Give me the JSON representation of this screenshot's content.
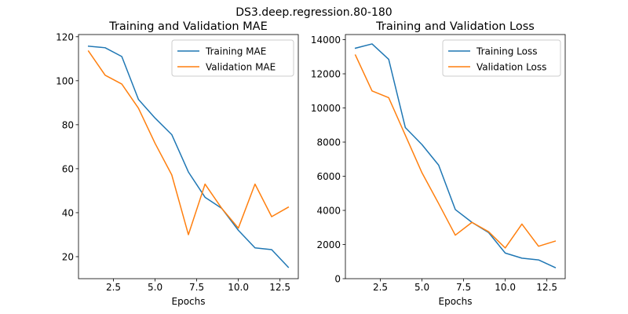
{
  "suptitle": "DS3.deep.regression.80-180",
  "chart_data": [
    {
      "type": "line",
      "title": "Training and Validation MAE",
      "xlabel": "Epochs",
      "ylabel": "",
      "xlim": [
        0.4,
        13.6
      ],
      "ylim": [
        10.0,
        121.0
      ],
      "xticks": [
        2.5,
        5.0,
        7.5,
        10.0,
        12.5
      ],
      "xtick_labels": [
        "2.5",
        "5.0",
        "7.5",
        "10.0",
        "12.5"
      ],
      "yticks": [
        20,
        40,
        60,
        80,
        100,
        120
      ],
      "ytick_labels": [
        "20",
        "40",
        "60",
        "80",
        "100",
        "120"
      ],
      "grid": false,
      "legend": "upper right",
      "x": [
        1,
        2,
        3,
        4,
        5,
        6,
        7,
        8,
        9,
        10,
        11,
        12,
        13
      ],
      "series": [
        {
          "name": "Training MAE",
          "color": "#1f77b4",
          "values": [
            115.7,
            115.0,
            111.0,
            91.5,
            83.0,
            75.5,
            58.5,
            47.0,
            42.0,
            32.0,
            24.0,
            23.2,
            15.2
          ]
        },
        {
          "name": "Validation MAE",
          "color": "#ff7f0e",
          "values": [
            113.5,
            102.5,
            98.5,
            87.5,
            71.5,
            57.2,
            30.0,
            53.0,
            42.0,
            33.0,
            53.0,
            38.2,
            42.5
          ]
        }
      ]
    },
    {
      "type": "line",
      "title": "Training and Validation Loss",
      "xlabel": "Epochs",
      "ylabel": "",
      "xlim": [
        0.4,
        13.6
      ],
      "ylim": [
        0,
        14300
      ],
      "xticks": [
        2.5,
        5.0,
        7.5,
        10.0,
        12.5
      ],
      "xtick_labels": [
        "2.5",
        "5.0",
        "7.5",
        "10.0",
        "12.5"
      ],
      "yticks": [
        0,
        2000,
        4000,
        6000,
        8000,
        10000,
        12000,
        14000
      ],
      "ytick_labels": [
        "0",
        "2000",
        "4000",
        "6000",
        "8000",
        "10000",
        "12000",
        "14000"
      ],
      "grid": false,
      "legend": "upper right",
      "x": [
        1,
        2,
        3,
        4,
        5,
        6,
        7,
        8,
        9,
        10,
        11,
        12,
        13
      ],
      "series": [
        {
          "name": "Training Loss",
          "color": "#1f77b4",
          "values": [
            13500,
            13750,
            12850,
            8850,
            7850,
            6650,
            4050,
            3300,
            2700,
            1500,
            1200,
            1100,
            650
          ]
        },
        {
          "name": "Validation Loss",
          "color": "#ff7f0e",
          "values": [
            13100,
            11000,
            10600,
            8400,
            6200,
            4400,
            2550,
            3300,
            2750,
            1800,
            3200,
            1900,
            2200
          ]
        }
      ]
    }
  ]
}
